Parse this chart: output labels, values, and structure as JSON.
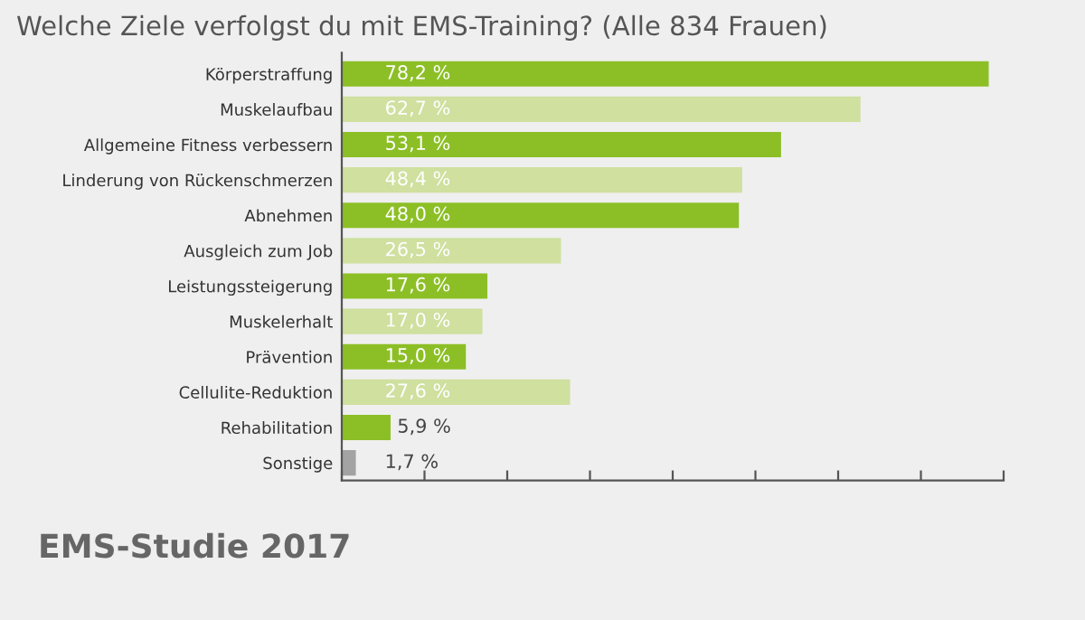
{
  "chart_data": {
    "type": "bar",
    "orientation": "horizontal",
    "title": "Welche Ziele verfolgst du mit EMS-Training? (Alle 834 Frauen)",
    "categories": [
      "Körperstraffung",
      "Muskelaufbau",
      "Allgemeine Fitness verbessern",
      "Linderung von Rückenschmerzen",
      "Abnehmen",
      "Ausgleich zum Job",
      "Leistungssteigerung",
      "Muskelerhalt",
      "Prävention",
      "Cellulite-Reduktion",
      "Rehabilitation",
      "Sonstige"
    ],
    "values": [
      78.2,
      62.7,
      53.1,
      48.4,
      48.0,
      26.5,
      17.6,
      17.0,
      15.0,
      27.6,
      5.9,
      1.7
    ],
    "value_labels": [
      "78,2 %",
      "62,7 %",
      "53,1 %",
      "48,4 %",
      "48,0 %",
      "26,5 %",
      "17,6 %",
      "17,0 %",
      "15,0 %",
      "27,6 %",
      "5,9 %",
      "1,7 %"
    ],
    "colors": [
      "#8cbf26",
      "#cfe09f",
      "#8cbf26",
      "#cfe09f",
      "#8cbf26",
      "#cfe09f",
      "#8cbf26",
      "#cfe09f",
      "#8cbf26",
      "#cfe09f",
      "#8cbf26",
      "#a3a3a3"
    ],
    "xlim": [
      0,
      80
    ],
    "xticks": [
      {
        "value": 0,
        "label": null
      },
      {
        "value": 10,
        "label": null
      },
      {
        "value": 20,
        "label": null
      },
      {
        "value": 30,
        "label": null
      },
      {
        "value": 40,
        "label": null
      },
      {
        "value": 50,
        "label": null
      },
      {
        "value": 60,
        "label": null
      },
      {
        "value": 70,
        "label": null
      },
      {
        "value": 80,
        "label": null
      }
    ],
    "tick_labels": "y",
    "grid": false,
    "legend": false,
    "annotations": [
      "EMS-Studie 2017"
    ]
  }
}
